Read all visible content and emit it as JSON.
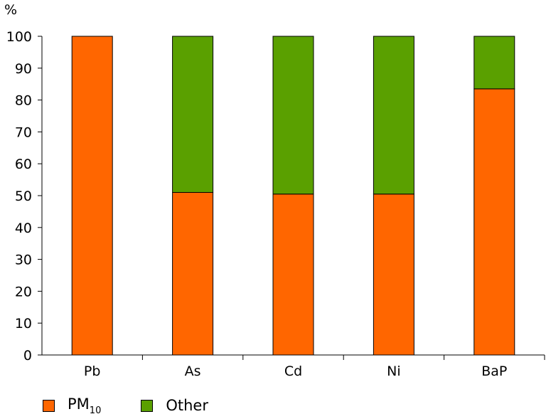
{
  "chart_data": {
    "type": "bar",
    "stacked": true,
    "unit_label": "%",
    "title": "",
    "xlabel": "",
    "ylabel": "%",
    "ylim": [
      0,
      100
    ],
    "yticks": [
      0,
      10,
      20,
      30,
      40,
      50,
      60,
      70,
      80,
      90,
      100
    ],
    "grid": false,
    "legend_position": "bottom-left",
    "categories": [
      "Pb",
      "As",
      "Cd",
      "Ni",
      "BaP"
    ],
    "series": [
      {
        "name": "PM",
        "name_sub": "10",
        "color": "#ff6600",
        "values": [
          100,
          51,
          50.5,
          50.5,
          83.5
        ]
      },
      {
        "name": "Other",
        "color": "#5aa000",
        "values": [
          0,
          49,
          49.5,
          49.5,
          16.5
        ]
      }
    ]
  }
}
